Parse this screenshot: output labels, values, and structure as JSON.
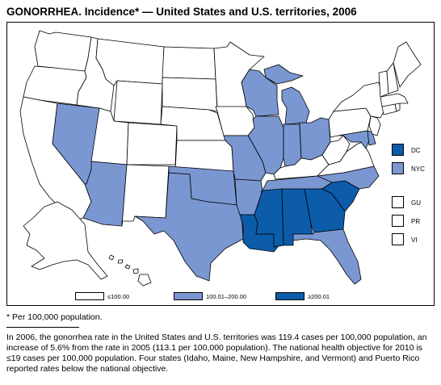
{
  "title": "GONORRHEA. Incidence* — United States and U.S. territories, 2006",
  "colors": {
    "level1": "#ffffff",
    "level2": "#7b97d2",
    "level3": "#0c5caa"
  },
  "legend": [
    {
      "label": "≤100.00",
      "level": 1
    },
    {
      "label": "100.01–200.00",
      "level": 2
    },
    {
      "label": "≥200.01",
      "level": 3
    }
  ],
  "side_items": [
    {
      "label": "DC",
      "level": 3
    },
    {
      "label": "NYC",
      "level": 2
    },
    {
      "label": "GU",
      "level": 1
    },
    {
      "label": "PR",
      "level": 1
    },
    {
      "label": "VI",
      "level": 1
    }
  ],
  "state_levels": {
    "WA": 1,
    "OR": 1,
    "CA": 1,
    "NV": 2,
    "ID": 1,
    "MT": 1,
    "WY": 1,
    "UT": 1,
    "AZ": 2,
    "CO": 1,
    "NM": 1,
    "ND": 1,
    "SD": 1,
    "NE": 1,
    "KS": 1,
    "OK": 2,
    "TX": 2,
    "MN": 1,
    "IA": 1,
    "MO": 2,
    "AR": 2,
    "LA": 3,
    "WI": 2,
    "IL": 2,
    "MI": 2,
    "IN": 2,
    "OH": 2,
    "KY": 1,
    "TN": 2,
    "MS": 3,
    "AL": 3,
    "GA": 3,
    "SC": 3,
    "NC": 2,
    "VA": 1,
    "WV": 1,
    "FL": 2,
    "PA": 1,
    "NY": 1,
    "VT": 1,
    "NH": 1,
    "ME": 1,
    "MA": 1,
    "CT": 1,
    "RI": 1,
    "NJ": 1,
    "DE": 2,
    "MD": 2,
    "AK": 1,
    "HI": 1
  },
  "footnote": "* Per 100,000 population.",
  "paragraph": "In 2006, the gonorrhea rate in the United States and U.S. territories was 119.4 cases per 100,000 population, an increase of 5.6% from the rate in 2005 (113.1 per 100,000 population). The national health objective for 2010 is ≤19 cases per 100,000 population. Four states (Idaho, Maine, New Hampshire, and Vermont) and Puerto Rico reported rates below the national objective."
}
